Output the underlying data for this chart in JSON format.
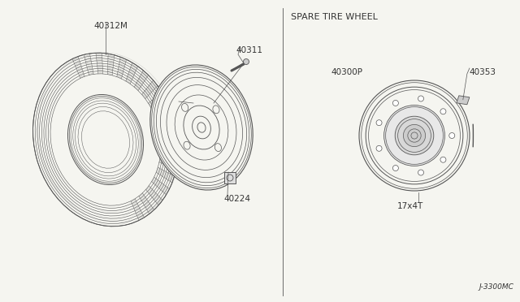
{
  "title": "SPARE TIRE WHEEL",
  "part_number_tire": "40312M",
  "part_number_wheel": "40300P",
  "part_number_valve": "40311",
  "part_number_nut": "40224",
  "part_number_hub_cap": "40353",
  "spare_label": "17x4T",
  "footer": "J-3300MC",
  "bg_color": "#f5f5f0",
  "line_color": "#555555",
  "text_color": "#333333",
  "label_fontsize": 7,
  "title_fontsize": 8
}
